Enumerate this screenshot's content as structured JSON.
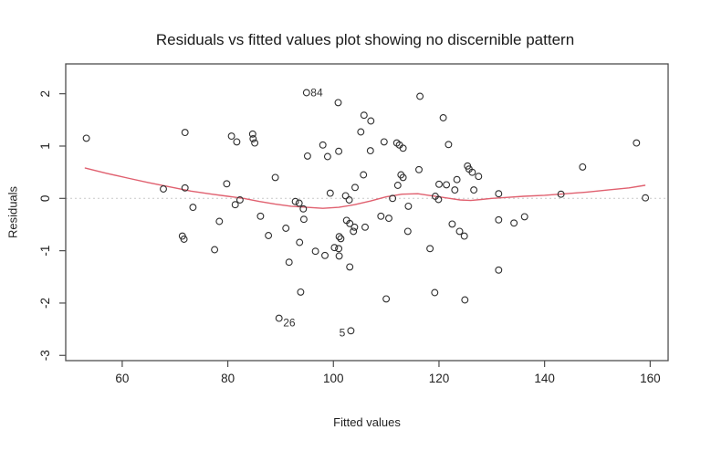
{
  "chart_data": {
    "type": "scatter",
    "title": "Residuals vs fitted values plot showing no discernible pattern",
    "xlabel": "Fitted values",
    "ylabel": "Residuals",
    "xlim": [
      49.3,
      163.4
    ],
    "ylim": [
      -3.1,
      2.57
    ],
    "x_ticks": [
      60,
      80,
      100,
      120,
      140,
      160
    ],
    "y_ticks": [
      -3,
      -2,
      -1,
      0,
      1,
      2
    ],
    "grid": false,
    "legend": false,
    "axis_color": "#4d4d4d",
    "tick_label_color": "#1f1f1f",
    "zero_line": {
      "y": 0,
      "style": "dotted",
      "color": "#c9c9c9"
    },
    "point_style": {
      "shape": "open-circle",
      "radius": 3.4,
      "stroke": "#2e2e2e"
    },
    "points": [
      [
        53.2,
        1.15
      ],
      [
        67.8,
        0.18
      ],
      [
        71.9,
        1.26
      ],
      [
        71.9,
        0.2
      ],
      [
        73.4,
        -0.17
      ],
      [
        71.4,
        -0.72
      ],
      [
        71.7,
        -0.78
      ],
      [
        77.5,
        -0.98
      ],
      [
        78.4,
        -0.44
      ],
      [
        79.8,
        0.28
      ],
      [
        80.7,
        1.19
      ],
      [
        81.7,
        1.08
      ],
      [
        81.4,
        -0.12
      ],
      [
        82.3,
        -0.03
      ],
      [
        84.7,
        1.23
      ],
      [
        84.8,
        1.14
      ],
      [
        85.1,
        1.06
      ],
      [
        86.2,
        -0.34
      ],
      [
        87.7,
        -0.71
      ],
      [
        89.0,
        0.4
      ],
      [
        91.0,
        -0.57
      ],
      [
        91.6,
        -1.22
      ],
      [
        92.8,
        -0.06
      ],
      [
        93.5,
        -0.09
      ],
      [
        94.3,
        -0.2
      ],
      [
        93.6,
        -0.84
      ],
      [
        93.8,
        -1.79
      ],
      [
        94.4,
        -0.4
      ],
      [
        95.1,
        0.81
      ],
      [
        96.6,
        -1.01
      ],
      [
        98.0,
        1.02
      ],
      [
        98.4,
        -1.09
      ],
      [
        98.9,
        0.8
      ],
      [
        99.4,
        0.1
      ],
      [
        100.9,
        1.83
      ],
      [
        101.0,
        0.9
      ],
      [
        100.2,
        -0.94
      ],
      [
        101.0,
        -0.96
      ],
      [
        101.1,
        -0.73
      ],
      [
        101.4,
        -0.77
      ],
      [
        101.1,
        -1.1
      ],
      [
        102.3,
        0.05
      ],
      [
        102.5,
        -0.42
      ],
      [
        103.1,
        -0.48
      ],
      [
        103.8,
        -0.63
      ],
      [
        104.0,
        -0.55
      ],
      [
        103.0,
        -0.03
      ],
      [
        103.1,
        -1.31
      ],
      [
        104.1,
        0.21
      ],
      [
        105.2,
        1.27
      ],
      [
        105.7,
        0.45
      ],
      [
        105.8,
        1.59
      ],
      [
        106.0,
        -0.55
      ],
      [
        107.0,
        0.91
      ],
      [
        107.1,
        1.48
      ],
      [
        109.0,
        -0.34
      ],
      [
        109.6,
        1.08
      ],
      [
        110.0,
        -1.92
      ],
      [
        110.5,
        -0.38
      ],
      [
        111.2,
        0.0
      ],
      [
        112.0,
        1.06
      ],
      [
        112.5,
        1.02
      ],
      [
        112.2,
        0.25
      ],
      [
        112.8,
        0.45
      ],
      [
        113.2,
        0.4
      ],
      [
        113.2,
        0.96
      ],
      [
        114.1,
        -0.63
      ],
      [
        114.2,
        -0.15
      ],
      [
        116.2,
        0.55
      ],
      [
        116.4,
        1.95
      ],
      [
        118.3,
        -0.96
      ],
      [
        119.2,
        -1.8
      ],
      [
        119.3,
        0.04
      ],
      [
        119.9,
        -0.02
      ],
      [
        120.0,
        0.27
      ],
      [
        120.8,
        1.54
      ],
      [
        121.4,
        0.26
      ],
      [
        121.8,
        1.03
      ],
      [
        122.5,
        -0.49
      ],
      [
        123.0,
        0.16
      ],
      [
        123.4,
        0.36
      ],
      [
        123.9,
        -0.63
      ],
      [
        124.8,
        -0.72
      ],
      [
        124.9,
        -1.94
      ],
      [
        125.4,
        0.62
      ],
      [
        125.7,
        0.56
      ],
      [
        126.3,
        0.5
      ],
      [
        127.5,
        0.42
      ],
      [
        126.6,
        0.16
      ],
      [
        131.3,
        0.09
      ],
      [
        131.3,
        -0.41
      ],
      [
        131.3,
        -1.37
      ],
      [
        134.2,
        -0.47
      ],
      [
        136.2,
        -0.35
      ],
      [
        143.1,
        0.08
      ],
      [
        147.2,
        0.6
      ],
      [
        157.4,
        1.06
      ],
      [
        159.1,
        0.01
      ]
    ],
    "labeled_points": [
      {
        "label": "84",
        "x": 94.9,
        "y": 2.02,
        "side": "right"
      },
      {
        "label": "26",
        "x": 89.7,
        "y": -2.29,
        "side": "right-below"
      },
      {
        "label": "5",
        "x": 103.3,
        "y": -2.53,
        "side": "left"
      }
    ],
    "smooth_line": {
      "name": "loess-smooth",
      "color": "#e0606f",
      "points": [
        [
          53,
          0.58
        ],
        [
          57,
          0.48
        ],
        [
          61,
          0.39
        ],
        [
          65,
          0.3
        ],
        [
          69,
          0.22
        ],
        [
          73,
          0.14
        ],
        [
          77,
          0.08
        ],
        [
          80,
          0.04
        ],
        [
          83,
          0.0
        ],
        [
          86,
          -0.06
        ],
        [
          89,
          -0.11
        ],
        [
          92,
          -0.15
        ],
        [
          95,
          -0.17
        ],
        [
          98,
          -0.19
        ],
        [
          101,
          -0.17
        ],
        [
          104,
          -0.12
        ],
        [
          107,
          -0.05
        ],
        [
          110,
          0.03
        ],
        [
          113,
          0.08
        ],
        [
          116,
          0.09
        ],
        [
          118,
          0.06
        ],
        [
          120,
          0.03
        ],
        [
          122,
          0.0
        ],
        [
          124,
          -0.03
        ],
        [
          126,
          -0.04
        ],
        [
          128,
          -0.02
        ],
        [
          130,
          0.0
        ],
        [
          133,
          0.02
        ],
        [
          136,
          0.04
        ],
        [
          140,
          0.06
        ],
        [
          144,
          0.09
        ],
        [
          148,
          0.12
        ],
        [
          152,
          0.16
        ],
        [
          156,
          0.2
        ],
        [
          159,
          0.25
        ]
      ]
    }
  }
}
